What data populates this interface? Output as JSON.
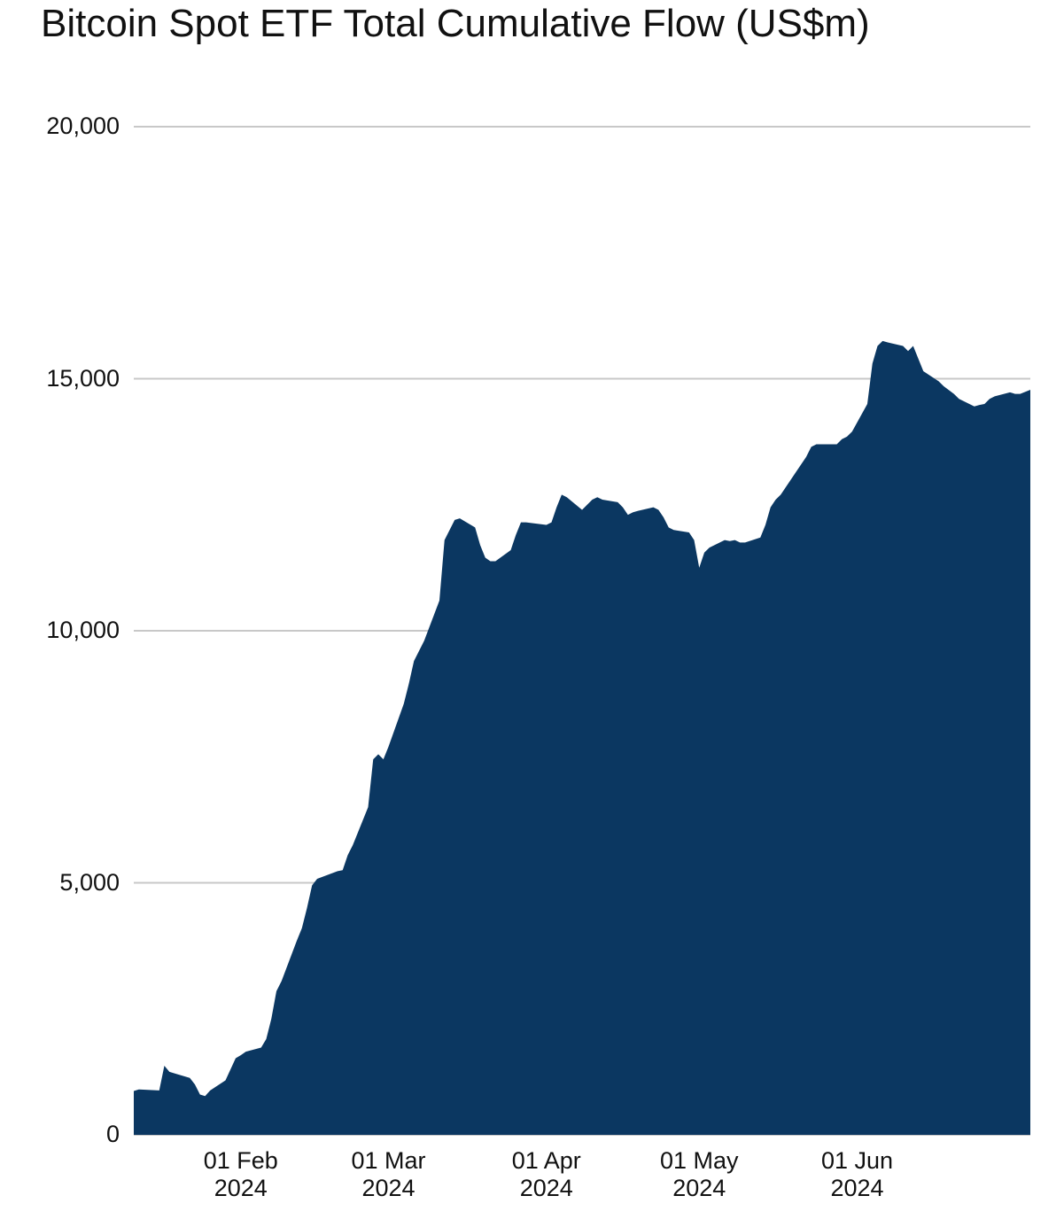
{
  "chart_data": {
    "type": "area",
    "title": "Bitcoin Spot ETF Total Cumulative Flow (US$m)",
    "x": [
      "2024-01-11",
      "2024-01-12",
      "2024-01-16",
      "2024-01-17",
      "2024-01-18",
      "2024-01-19",
      "2024-01-22",
      "2024-01-23",
      "2024-01-24",
      "2024-01-25",
      "2024-01-26",
      "2024-01-29",
      "2024-01-30",
      "2024-01-31",
      "2024-02-01",
      "2024-02-02",
      "2024-02-05",
      "2024-02-06",
      "2024-02-07",
      "2024-02-08",
      "2024-02-09",
      "2024-02-12",
      "2024-02-13",
      "2024-02-14",
      "2024-02-15",
      "2024-02-16",
      "2024-02-20",
      "2024-02-21",
      "2024-02-22",
      "2024-02-23",
      "2024-02-26",
      "2024-02-27",
      "2024-02-28",
      "2024-02-29",
      "2024-03-01",
      "2024-03-04",
      "2024-03-05",
      "2024-03-06",
      "2024-03-07",
      "2024-03-08",
      "2024-03-11",
      "2024-03-12",
      "2024-03-13",
      "2024-03-14",
      "2024-03-15",
      "2024-03-18",
      "2024-03-19",
      "2024-03-20",
      "2024-03-21",
      "2024-03-22",
      "2024-03-25",
      "2024-03-26",
      "2024-03-27",
      "2024-03-28",
      "2024-04-01",
      "2024-04-02",
      "2024-04-03",
      "2024-04-04",
      "2024-04-05",
      "2024-04-08",
      "2024-04-09",
      "2024-04-10",
      "2024-04-11",
      "2024-04-12",
      "2024-04-15",
      "2024-04-16",
      "2024-04-17",
      "2024-04-18",
      "2024-04-19",
      "2024-04-22",
      "2024-04-23",
      "2024-04-24",
      "2024-04-25",
      "2024-04-26",
      "2024-04-29",
      "2024-04-30",
      "2024-05-01",
      "2024-05-02",
      "2024-05-03",
      "2024-05-06",
      "2024-05-07",
      "2024-05-08",
      "2024-05-09",
      "2024-05-10",
      "2024-05-13",
      "2024-05-14",
      "2024-05-15",
      "2024-05-16",
      "2024-05-17",
      "2024-05-20",
      "2024-05-21",
      "2024-05-22",
      "2024-05-23",
      "2024-05-24",
      "2024-05-28",
      "2024-05-29",
      "2024-05-30",
      "2024-05-31",
      "2024-06-03",
      "2024-06-04",
      "2024-06-05",
      "2024-06-06",
      "2024-06-07",
      "2024-06-10",
      "2024-06-11",
      "2024-06-12",
      "2024-06-13",
      "2024-06-14",
      "2024-06-17",
      "2024-06-18",
      "2024-06-20",
      "2024-06-21",
      "2024-06-24",
      "2024-06-25",
      "2024-06-26",
      "2024-06-27",
      "2024-06-28",
      "2024-07-01",
      "2024-07-02",
      "2024-07-03",
      "2024-07-05"
    ],
    "values": [
      870,
      900,
      880,
      1370,
      1250,
      1220,
      1130,
      1000,
      800,
      770,
      880,
      1080,
      1300,
      1520,
      1580,
      1650,
      1730,
      1900,
      2300,
      2850,
      3050,
      3850,
      4100,
      4500,
      4950,
      5080,
      5230,
      5250,
      5550,
      5750,
      6500,
      7450,
      7550,
      7450,
      7700,
      8550,
      8950,
      9400,
      9600,
      9800,
      10600,
      11800,
      12000,
      12200,
      12230,
      12050,
      11700,
      11450,
      11380,
      11380,
      11600,
      11900,
      12150,
      12150,
      12100,
      12150,
      12450,
      12700,
      12650,
      12400,
      12500,
      12600,
      12650,
      12600,
      12550,
      12450,
      12300,
      12350,
      12380,
      12450,
      12400,
      12250,
      12050,
      12000,
      11950,
      11800,
      11250,
      11550,
      11650,
      11800,
      11780,
      11800,
      11750,
      11750,
      11850,
      12100,
      12450,
      12600,
      12700,
      13150,
      13300,
      13450,
      13650,
      13700,
      13700,
      13800,
      13850,
      13950,
      14500,
      15300,
      15650,
      15750,
      15720,
      15650,
      15550,
      15650,
      15400,
      15150,
      14950,
      14850,
      14700,
      14600,
      14450,
      14480,
      14500,
      14600,
      14650,
      14730,
      14700,
      14700,
      14780
    ],
    "color": "#0b3761",
    "xlim": [
      "2024-01-11",
      "2024-07-05"
    ],
    "xticks": [
      {
        "value": "2024-02-01",
        "label": "01 Feb\n2024"
      },
      {
        "value": "2024-03-01",
        "label": "01 Mar\n2024"
      },
      {
        "value": "2024-04-01",
        "label": "01 Apr\n2024"
      },
      {
        "value": "2024-05-01",
        "label": "01 May\n2024"
      },
      {
        "value": "2024-06-01",
        "label": "01 Jun\n2024"
      }
    ],
    "ylim": [
      0,
      20000
    ],
    "yticks": [
      0,
      {
        "value": 5000,
        "label": "5,000"
      },
      {
        "value": 10000,
        "label": "10,000"
      },
      {
        "value": 15000,
        "label": "15,000"
      },
      {
        "value": 20000,
        "label": "20,000"
      }
    ],
    "grid": true
  }
}
